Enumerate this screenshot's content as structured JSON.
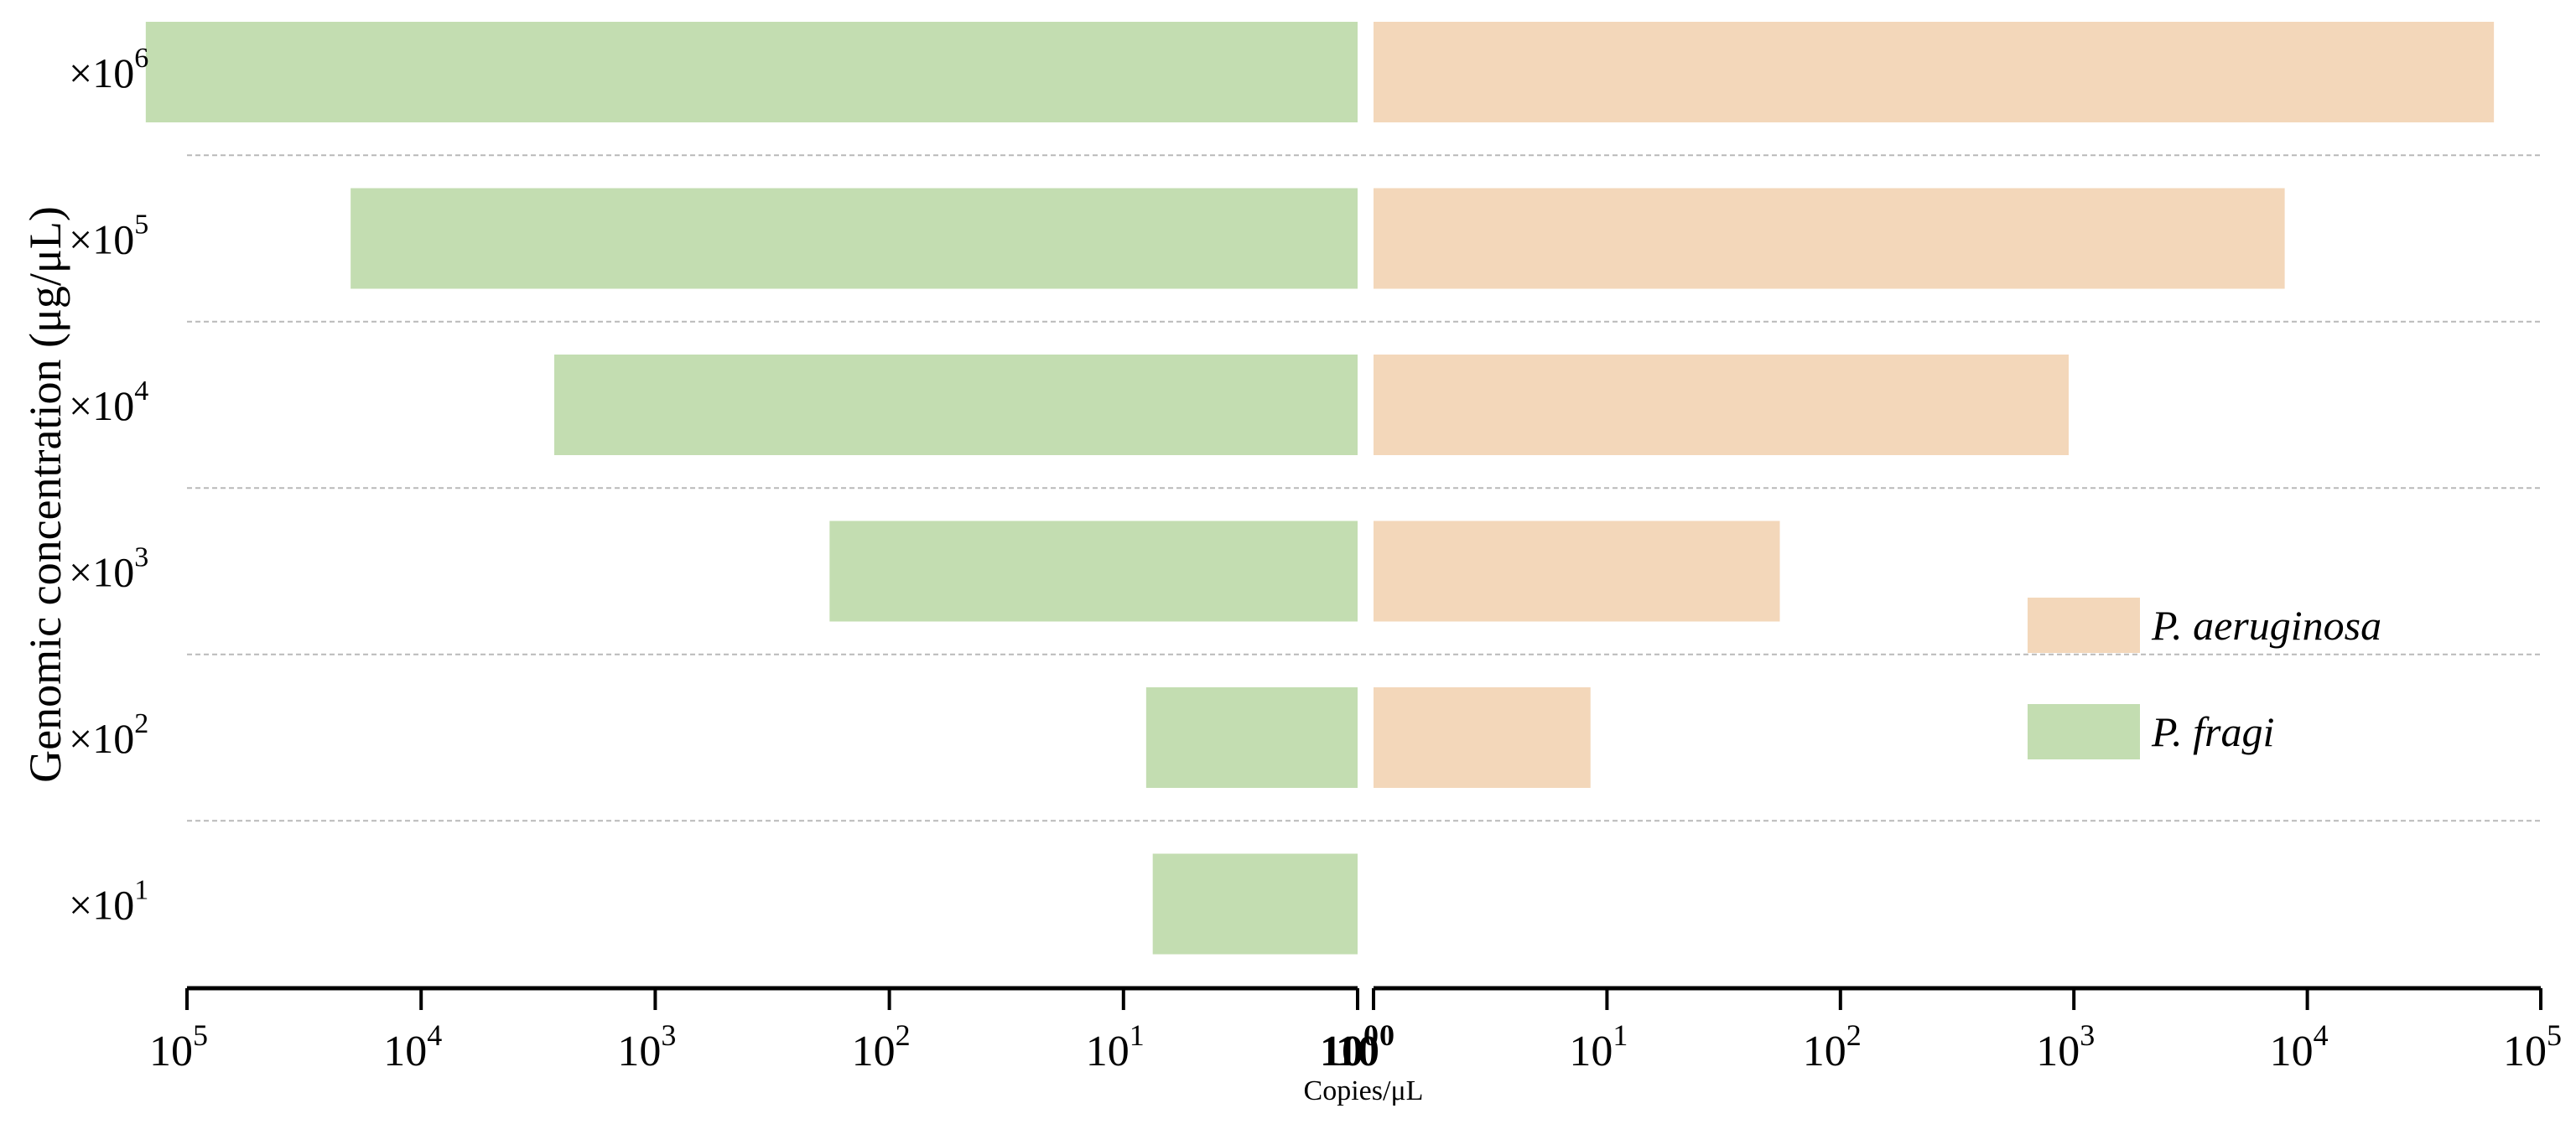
{
  "chart_data": {
    "type": "bar",
    "orientation": "horizontal",
    "layout": "back-to-back",
    "x_scale": "log",
    "ylabel": "Genomic concentration (μg/μL)",
    "xlabel": "Copies/μL",
    "categories": [
      {
        "prefix": "×10",
        "exp": "6"
      },
      {
        "prefix": "×10",
        "exp": "5"
      },
      {
        "prefix": "×10",
        "exp": "4"
      },
      {
        "prefix": "×10",
        "exp": "3"
      },
      {
        "prefix": "×10",
        "exp": "2"
      },
      {
        "prefix": "×10",
        "exp": "1"
      }
    ],
    "series": [
      {
        "name": "P. fragi",
        "side": "left",
        "color": "#c3ddb1",
        "values": [
          150000,
          20000,
          2700,
          180,
          8,
          7.5
        ]
      },
      {
        "name": "P. aeruginosa",
        "side": "right",
        "color": "#f3d7ba",
        "values": [
          63000,
          8000,
          950,
          55,
          8.5,
          null
        ]
      }
    ],
    "xlim": [
      1,
      100000
    ],
    "x_ticks": {
      "left": [
        {
          "base": "10",
          "exp": "5",
          "value": 100000
        },
        {
          "base": "10",
          "exp": "4",
          "value": 10000
        },
        {
          "base": "10",
          "exp": "3",
          "value": 1000
        },
        {
          "base": "10",
          "exp": "2",
          "value": 100
        },
        {
          "base": "10",
          "exp": "1",
          "value": 10
        },
        {
          "base": "10",
          "exp": "0",
          "value": 1
        }
      ],
      "right": [
        {
          "base": "10",
          "exp": "0",
          "value": 1
        },
        {
          "base": "10",
          "exp": "1",
          "value": 10
        },
        {
          "base": "10",
          "exp": "2",
          "value": 100
        },
        {
          "base": "10",
          "exp": "3",
          "value": 1000
        },
        {
          "base": "10",
          "exp": "4",
          "value": 10000
        },
        {
          "base": "10",
          "exp": "5",
          "value": 100000
        }
      ]
    },
    "legend": {
      "position": "right",
      "items": [
        {
          "label": "P. aeruginosa",
          "color": "#f3d7ba"
        },
        {
          "label": "P. fragi",
          "color": "#c3ddb1"
        }
      ]
    },
    "grid": "horizontal dashed separators"
  }
}
